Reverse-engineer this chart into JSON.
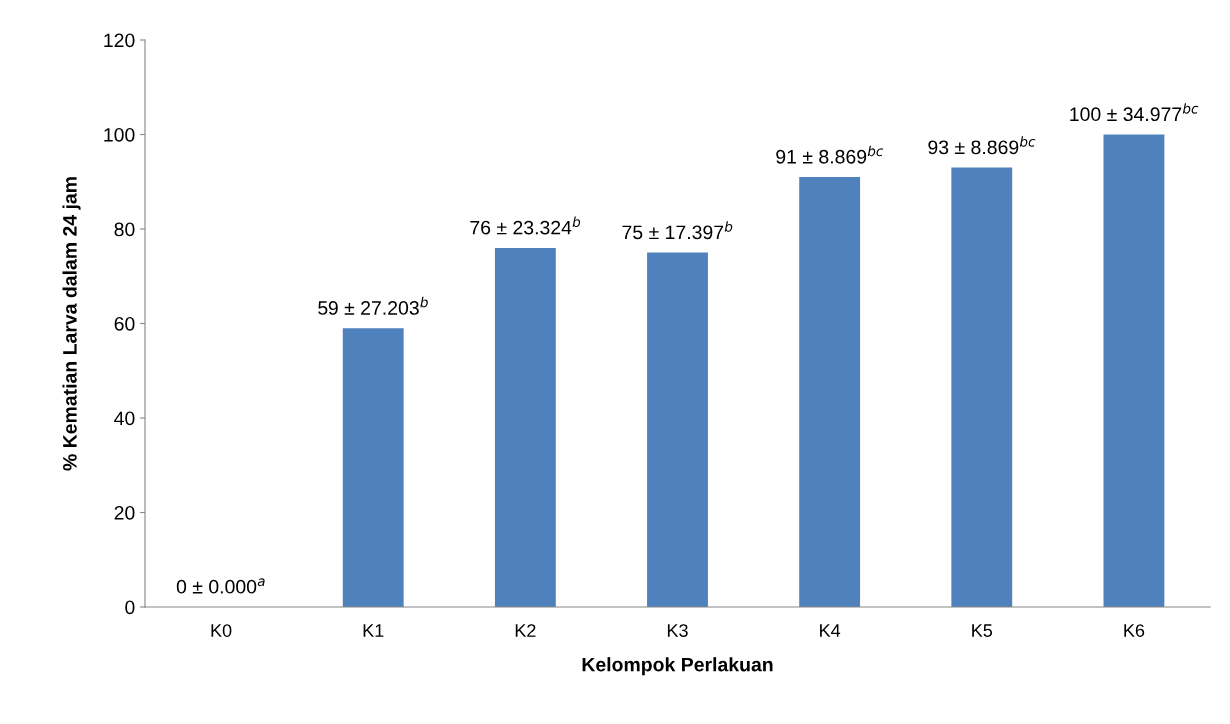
{
  "chart_data": {
    "type": "bar",
    "xlabel": "Kelompok Perlakuan",
    "ylabel": "% Kematian Larva dalam 24 jam",
    "categories": [
      "K0",
      "K1",
      "K2",
      "K3",
      "K4",
      "K5",
      "K6"
    ],
    "values": [
      0,
      59,
      76,
      75,
      91,
      93,
      100
    ],
    "color": "#4f81bd",
    "value_labels": [
      "0 ± 0.000$^{a}$",
      "59 ± 27.203$^{b}$",
      "76 ± 23.324$^{b}$",
      "75 ± 17.397$^{b}$",
      "91 ± 8.869$^{bc}$",
      "93 ± 8.869$^{bc}$",
      "100 ± 34.977$^{bc}$"
    ],
    "ylim": [
      0,
      120
    ],
    "yticks": [
      0,
      20,
      40,
      60,
      80,
      100,
      120
    ],
    "grid": false
  }
}
